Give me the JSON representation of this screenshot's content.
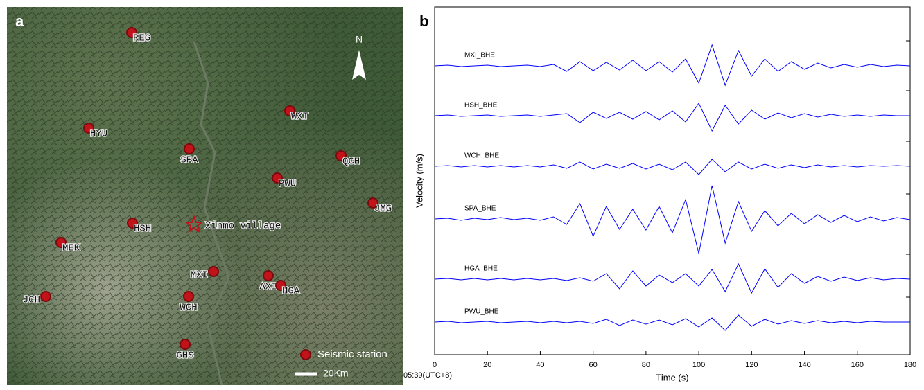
{
  "panel_a": {
    "label": "a",
    "stations": [
      "REG",
      "HYU",
      "SPA",
      "WXT",
      "QCH",
      "PWU",
      "JMG",
      "HSH",
      "MEK",
      "MXI",
      "AXI",
      "HGA",
      "JCH",
      "WCH",
      "GHS"
    ],
    "target": "Xinmo village",
    "north": "N",
    "legend": "Seismic station",
    "scale": "20Km"
  },
  "chart_data": {
    "type": "line",
    "label": "b",
    "ylabel": "Velocity (m/s)",
    "xlabel": "Time (s)",
    "start_time": "05:39(UTC+8)",
    "xlim": [
      0,
      180
    ],
    "xticks": [
      0,
      20,
      40,
      60,
      80,
      100,
      120,
      140,
      160,
      180
    ],
    "x": [
      0,
      5,
      10,
      15,
      20,
      25,
      30,
      35,
      40,
      45,
      50,
      55,
      60,
      65,
      70,
      75,
      80,
      85,
      90,
      95,
      100,
      105,
      110,
      115,
      120,
      125,
      130,
      135,
      140,
      145,
      150,
      155,
      160,
      165,
      170,
      175,
      180
    ],
    "series": [
      {
        "name": "MXI_BHE",
        "color": "#0000ff",
        "values": [
          0,
          1,
          -1,
          0,
          1,
          -1,
          0,
          1,
          -1,
          2,
          -8,
          6,
          -7,
          5,
          -6,
          8,
          -7,
          6,
          -9,
          10,
          -25,
          30,
          -28,
          22,
          -15,
          10,
          -8,
          6,
          -5,
          4,
          -3,
          2,
          -2,
          2,
          -1,
          1,
          0
        ]
      },
      {
        "name": "HSH_BHE",
        "color": "#0000ff",
        "values": [
          0,
          1,
          -1,
          0,
          1,
          -1,
          0,
          1,
          -1,
          1,
          3,
          -10,
          5,
          -4,
          5,
          -5,
          6,
          -6,
          7,
          -9,
          18,
          -22,
          15,
          -12,
          8,
          -5,
          4,
          -3,
          3,
          -2,
          2,
          -1,
          1,
          -1,
          1,
          0,
          0
        ]
      },
      {
        "name": "WCH_BHE",
        "color": "#0000ff",
        "values": [
          0,
          1,
          -1,
          1,
          -1,
          1,
          -1,
          1,
          -1,
          2,
          -3,
          6,
          -4,
          3,
          -3,
          4,
          -4,
          3,
          -5,
          6,
          -12,
          10,
          -8,
          6,
          -4,
          3,
          -3,
          2,
          -2,
          2,
          -1,
          1,
          -1,
          1,
          0,
          1,
          0
        ]
      },
      {
        "name": "SPA_BHE",
        "color": "#0000ff",
        "values": [
          0,
          1,
          -2,
          1,
          -1,
          2,
          -1,
          1,
          -2,
          3,
          -8,
          22,
          -25,
          18,
          -15,
          14,
          -16,
          18,
          -20,
          28,
          -50,
          48,
          -35,
          25,
          -18,
          12,
          -10,
          8,
          -7,
          6,
          -5,
          5,
          -4,
          3,
          -3,
          2,
          -1
        ]
      },
      {
        "name": "HGA_BHE",
        "color": "#0000ff",
        "values": [
          0,
          1,
          -1,
          1,
          -1,
          1,
          -1,
          1,
          -1,
          1,
          -2,
          2,
          -3,
          8,
          -14,
          12,
          -10,
          6,
          -5,
          8,
          -10,
          14,
          -18,
          22,
          -20,
          15,
          -12,
          8,
          -6,
          4,
          -3,
          3,
          -2,
          2,
          -1,
          1,
          0
        ]
      },
      {
        "name": "PWU_BHE",
        "color": "#0000ff",
        "values": [
          0,
          1,
          -1,
          0,
          1,
          -1,
          0,
          1,
          -1,
          1,
          -1,
          1,
          -2,
          4,
          -5,
          3,
          -3,
          3,
          -4,
          5,
          -7,
          6,
          -12,
          10,
          -6,
          4,
          -3,
          2,
          -2,
          2,
          -1,
          1,
          -1,
          1,
          0,
          0,
          0
        ]
      }
    ]
  }
}
